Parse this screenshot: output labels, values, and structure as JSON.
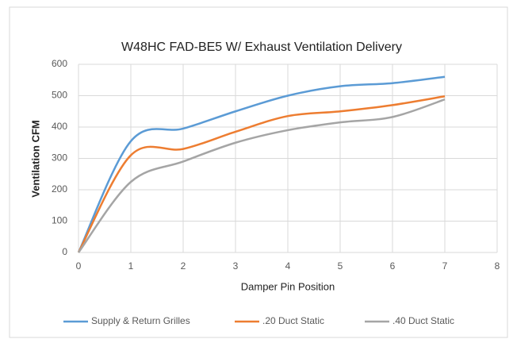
{
  "chart_data": {
    "type": "line",
    "title": "W48HC FAD-BE5 W/ Exhaust Ventilation Delivery",
    "x_label": "Damper Pin Position",
    "y_label": "Ventilation CFM",
    "x": [
      0,
      1,
      2,
      3,
      4,
      5,
      6,
      7
    ],
    "series": [
      {
        "name": "Supply & Return Grilles",
        "color": "#5b9bd5",
        "values": [
          0,
          355,
          395,
          450,
          500,
          530,
          540,
          560
        ]
      },
      {
        "name": ".20 Duct Static",
        "color": "#ed7d31",
        "values": [
          0,
          310,
          330,
          385,
          435,
          450,
          470,
          498
        ]
      },
      {
        "name": ".40 Duct Static",
        "color": "#a5a5a5",
        "values": [
          0,
          225,
          290,
          350,
          390,
          415,
          432,
          488
        ]
      }
    ],
    "xlim": [
      0,
      8
    ],
    "xticks": [
      0,
      1,
      2,
      3,
      4,
      5,
      6,
      7,
      8
    ],
    "ylim": [
      0,
      600
    ],
    "yticks": [
      0,
      100,
      200,
      300,
      400,
      500,
      600
    ],
    "grid": true,
    "legend": "bottom"
  }
}
